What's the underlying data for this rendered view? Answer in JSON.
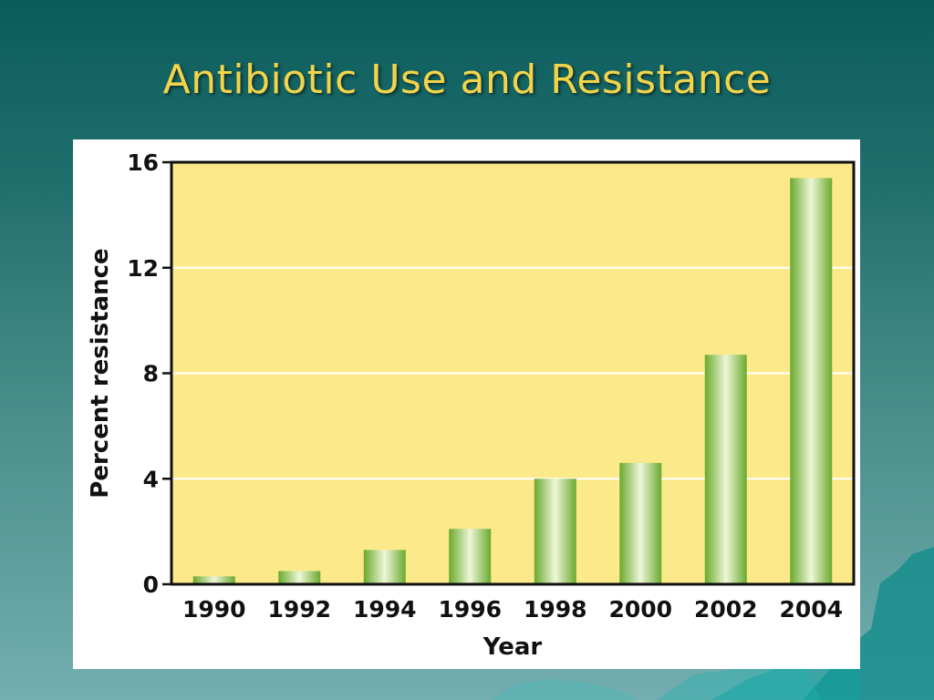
{
  "slide": {
    "title": "Antibiotic Use and Resistance"
  },
  "colors": {
    "plot_background": "#fce98a",
    "bar_edge": "#6aa92e",
    "bar_highlight": "#eef7d8",
    "gridline": "#ffffff",
    "frame": "#111111"
  },
  "chart_data": {
    "type": "bar",
    "title": "",
    "xlabel": "Year",
    "ylabel": "Percent resistance",
    "categories": [
      "1990",
      "1992",
      "1994",
      "1996",
      "1998",
      "2000",
      "2002",
      "2004"
    ],
    "values": [
      0.3,
      0.5,
      1.3,
      2.1,
      4.0,
      4.6,
      8.7,
      15.4
    ],
    "ylim": [
      0,
      16
    ],
    "yticks": [
      0,
      4,
      8,
      12,
      16
    ],
    "grid": true,
    "legend": "none"
  }
}
